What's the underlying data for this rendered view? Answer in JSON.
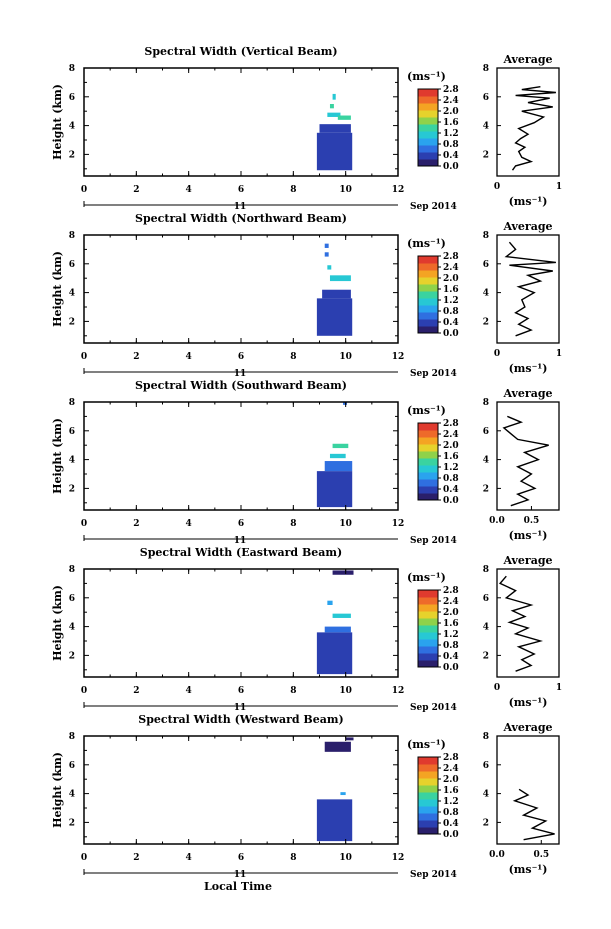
{
  "chart_data": [
    {
      "type": "heatmap",
      "title": "Spectral Width (Vertical Beam)",
      "ylabel": "Height (km)",
      "xlim": [
        0,
        12
      ],
      "ylim": [
        0.5,
        8
      ],
      "xticks": [
        "0",
        "2",
        "4",
        "6",
        "8",
        "10",
        "12"
      ],
      "yticks": [
        "2",
        "4",
        "6",
        "8"
      ],
      "date_day": "11",
      "date_label": "Sep 2014",
      "colorbar": {
        "unit": "(ms⁻¹)",
        "ticks": [
          "0.0",
          "0.4",
          "0.8",
          "1.2",
          "1.6",
          "2.0",
          "2.4",
          "2.8"
        ]
      },
      "cells": [
        {
          "t0": 8.9,
          "t1": 10.25,
          "h0": 0.9,
          "h1": 3.5,
          "c": 0.5
        },
        {
          "t0": 9.0,
          "t1": 10.2,
          "h0": 3.5,
          "h1": 4.1,
          "c": 0.45
        },
        {
          "t0": 9.3,
          "t1": 9.8,
          "h0": 4.6,
          "h1": 4.9,
          "c": 1.2
        },
        {
          "t0": 9.7,
          "t1": 10.2,
          "h0": 4.4,
          "h1": 4.7,
          "c": 1.5
        },
        {
          "t0": 9.4,
          "t1": 9.55,
          "h0": 5.2,
          "h1": 5.5,
          "c": 1.3
        },
        {
          "t0": 9.5,
          "t1": 9.62,
          "h0": 5.8,
          "h1": 6.2,
          "c": 1.1
        }
      ],
      "average": {
        "title": "Average",
        "xlabel": "(ms⁻¹)",
        "xlim": [
          0,
          1
        ],
        "xticks": [
          "0",
          "1"
        ],
        "ylim": [
          0.5,
          8
        ],
        "yticks": [
          "2",
          "4",
          "6",
          "8"
        ],
        "profile": [
          [
            0.25,
            0.9
          ],
          [
            0.3,
            1.2
          ],
          [
            0.55,
            1.5
          ],
          [
            0.4,
            1.8
          ],
          [
            0.35,
            2.2
          ],
          [
            0.45,
            2.5
          ],
          [
            0.3,
            2.8
          ],
          [
            0.38,
            3.1
          ],
          [
            0.5,
            3.4
          ],
          [
            0.35,
            3.8
          ],
          [
            0.6,
            4.2
          ],
          [
            0.75,
            4.6
          ],
          [
            0.4,
            5.0
          ],
          [
            0.9,
            5.3
          ],
          [
            0.5,
            5.6
          ],
          [
            0.85,
            5.9
          ],
          [
            0.3,
            6.1
          ],
          [
            0.95,
            6.3
          ],
          [
            0.4,
            6.5
          ],
          [
            0.7,
            6.7
          ]
        ]
      }
    },
    {
      "type": "heatmap",
      "title": "Spectral Width (Northward Beam)",
      "ylabel": "Height (km)",
      "xlim": [
        0,
        12
      ],
      "ylim": [
        0.5,
        8
      ],
      "xticks": [
        "0",
        "2",
        "4",
        "6",
        "8",
        "10",
        "12"
      ],
      "yticks": [
        "2",
        "4",
        "6",
        "8"
      ],
      "date_day": "11",
      "date_label": "Sep 2014",
      "colorbar": {
        "unit": "(ms⁻¹)",
        "ticks": [
          "0.0",
          "0.4",
          "0.8",
          "1.2",
          "1.6",
          "2.0",
          "2.4",
          "2.8"
        ]
      },
      "cells": [
        {
          "t0": 8.9,
          "t1": 10.25,
          "h0": 1.0,
          "h1": 3.6,
          "c": 0.5
        },
        {
          "t0": 9.1,
          "t1": 10.2,
          "h0": 3.6,
          "h1": 4.2,
          "c": 0.5
        },
        {
          "t0": 9.4,
          "t1": 10.2,
          "h0": 4.8,
          "h1": 5.2,
          "c": 1.1
        },
        {
          "t0": 9.3,
          "t1": 9.45,
          "h0": 5.6,
          "h1": 5.9,
          "c": 1.2
        },
        {
          "t0": 9.2,
          "t1": 9.35,
          "h0": 6.5,
          "h1": 6.8,
          "c": 0.6
        },
        {
          "t0": 9.2,
          "t1": 9.35,
          "h0": 7.1,
          "h1": 7.4,
          "c": 0.6
        }
      ],
      "average": {
        "title": "Average",
        "xlabel": "(ms⁻¹)",
        "xlim": [
          0,
          1
        ],
        "xticks": [
          "0",
          "1"
        ],
        "ylim": [
          0.5,
          8
        ],
        "yticks": [
          "2",
          "4",
          "6",
          "8"
        ],
        "profile": [
          [
            0.3,
            1.0
          ],
          [
            0.55,
            1.4
          ],
          [
            0.35,
            1.8
          ],
          [
            0.5,
            2.2
          ],
          [
            0.3,
            2.6
          ],
          [
            0.45,
            3.0
          ],
          [
            0.4,
            3.5
          ],
          [
            0.6,
            4.0
          ],
          [
            0.35,
            4.4
          ],
          [
            0.7,
            4.8
          ],
          [
            0.5,
            5.2
          ],
          [
            0.9,
            5.5
          ],
          [
            0.2,
            5.9
          ],
          [
            0.95,
            6.1
          ],
          [
            0.15,
            6.5
          ],
          [
            0.3,
            7.0
          ],
          [
            0.2,
            7.5
          ]
        ]
      }
    },
    {
      "type": "heatmap",
      "title": "Spectral Width (Southward Beam)",
      "ylabel": "Height (km)",
      "xlim": [
        0,
        12
      ],
      "ylim": [
        0.5,
        8
      ],
      "xticks": [
        "0",
        "2",
        "4",
        "6",
        "8",
        "10",
        "12"
      ],
      "yticks": [
        "2",
        "4",
        "6",
        "8"
      ],
      "date_day": "11",
      "date_label": "Sep 2014",
      "colorbar": {
        "unit": "(ms⁻¹)",
        "ticks": [
          "0.0",
          "0.4",
          "0.8",
          "1.2",
          "1.6",
          "2.0",
          "2.4",
          "2.8"
        ]
      },
      "cells": [
        {
          "t0": 8.9,
          "t1": 10.25,
          "h0": 0.7,
          "h1": 3.2,
          "c": 0.5
        },
        {
          "t0": 9.2,
          "t1": 10.25,
          "h0": 3.2,
          "h1": 3.9,
          "c": 0.6
        },
        {
          "t0": 9.4,
          "t1": 10.0,
          "h0": 4.1,
          "h1": 4.4,
          "c": 1.2
        },
        {
          "t0": 9.5,
          "t1": 10.1,
          "h0": 4.8,
          "h1": 5.1,
          "c": 1.3
        },
        {
          "t0": 9.9,
          "t1": 10.05,
          "h0": 7.8,
          "h1": 8.0,
          "c": 0.7
        }
      ],
      "average": {
        "title": "Average",
        "xlabel": "(ms⁻¹)",
        "xlim": [
          0,
          0.9
        ],
        "xticks": [
          "0.0",
          "0.5"
        ],
        "ylim": [
          0.5,
          8
        ],
        "yticks": [
          "2",
          "4",
          "6",
          "8"
        ],
        "profile": [
          [
            0.2,
            0.8
          ],
          [
            0.45,
            1.2
          ],
          [
            0.3,
            1.6
          ],
          [
            0.55,
            2.0
          ],
          [
            0.35,
            2.5
          ],
          [
            0.5,
            3.0
          ],
          [
            0.3,
            3.5
          ],
          [
            0.6,
            4.0
          ],
          [
            0.4,
            4.5
          ],
          [
            0.75,
            5.0
          ],
          [
            0.3,
            5.4
          ],
          [
            0.2,
            5.8
          ],
          [
            0.1,
            6.2
          ],
          [
            0.35,
            6.6
          ],
          [
            0.15,
            7.0
          ]
        ]
      }
    },
    {
      "type": "heatmap",
      "title": "Spectral Width (Eastward Beam)",
      "ylabel": "Height (km)",
      "xlim": [
        0,
        12
      ],
      "ylim": [
        0.5,
        8
      ],
      "xticks": [
        "0",
        "2",
        "4",
        "6",
        "8",
        "10",
        "12"
      ],
      "yticks": [
        "2",
        "4",
        "6",
        "8"
      ],
      "date_day": "11",
      "date_label": "Sep 2014",
      "colorbar": {
        "unit": "(ms⁻¹)",
        "ticks": [
          "0.0",
          "0.4",
          "0.8",
          "1.2",
          "1.6",
          "2.0",
          "2.4",
          "2.8"
        ]
      },
      "cells": [
        {
          "t0": 8.9,
          "t1": 10.25,
          "h0": 0.7,
          "h1": 3.6,
          "c": 0.5
        },
        {
          "t0": 9.2,
          "t1": 10.2,
          "h0": 3.6,
          "h1": 4.0,
          "c": 0.6
        },
        {
          "t0": 9.5,
          "t1": 10.2,
          "h0": 4.6,
          "h1": 4.9,
          "c": 1.2
        },
        {
          "t0": 9.3,
          "t1": 9.5,
          "h0": 5.5,
          "h1": 5.8,
          "c": 1.0
        },
        {
          "t0": 9.5,
          "t1": 10.3,
          "h0": 7.6,
          "h1": 7.9,
          "c": 0.1
        }
      ],
      "average": {
        "title": "Average",
        "xlabel": "(ms⁻¹)",
        "xlim": [
          0,
          1
        ],
        "xticks": [
          "0",
          "1"
        ],
        "ylim": [
          0.5,
          8
        ],
        "yticks": [
          "2",
          "4",
          "6",
          "8"
        ],
        "profile": [
          [
            0.3,
            0.9
          ],
          [
            0.55,
            1.3
          ],
          [
            0.4,
            1.7
          ],
          [
            0.6,
            2.1
          ],
          [
            0.35,
            2.6
          ],
          [
            0.7,
            3.0
          ],
          [
            0.3,
            3.5
          ],
          [
            0.5,
            3.9
          ],
          [
            0.2,
            4.3
          ],
          [
            0.45,
            4.7
          ],
          [
            0.25,
            5.1
          ],
          [
            0.55,
            5.5
          ],
          [
            0.15,
            6.0
          ],
          [
            0.3,
            6.5
          ],
          [
            0.05,
            7.0
          ],
          [
            0.15,
            7.5
          ]
        ]
      }
    },
    {
      "type": "heatmap",
      "title": "Spectral Width (Westward Beam)",
      "ylabel": "Height (km)",
      "xlabel": "Local Time",
      "xlim": [
        0,
        12
      ],
      "ylim": [
        0.5,
        8
      ],
      "xticks": [
        "0",
        "2",
        "4",
        "6",
        "8",
        "10",
        "12"
      ],
      "yticks": [
        "2",
        "4",
        "6",
        "8"
      ],
      "date_day": "11",
      "date_label": "Sep 2014",
      "colorbar": {
        "unit": "(ms⁻¹)",
        "ticks": [
          "0.0",
          "0.4",
          "0.8",
          "1.2",
          "1.6",
          "2.0",
          "2.4",
          "2.8"
        ]
      },
      "cells": [
        {
          "t0": 8.9,
          "t1": 10.25,
          "h0": 0.7,
          "h1": 3.6,
          "c": 0.5
        },
        {
          "t0": 9.8,
          "t1": 10.0,
          "h0": 3.9,
          "h1": 4.1,
          "c": 0.9
        },
        {
          "t0": 9.2,
          "t1": 10.2,
          "h0": 6.9,
          "h1": 7.6,
          "c": 0.1
        },
        {
          "t0": 10.0,
          "t1": 10.3,
          "h0": 7.7,
          "h1": 7.9,
          "c": 0.1
        }
      ],
      "average": {
        "title": "Average",
        "xlabel": "(ms⁻¹)",
        "xlim": [
          0,
          0.7
        ],
        "xticks": [
          "0.0",
          "0.5"
        ],
        "ylim": [
          0.5,
          8
        ],
        "yticks": [
          "2",
          "4",
          "6",
          "8"
        ],
        "profile": [
          [
            0.3,
            0.8
          ],
          [
            0.65,
            1.2
          ],
          [
            0.4,
            1.6
          ],
          [
            0.55,
            2.1
          ],
          [
            0.3,
            2.5
          ],
          [
            0.45,
            3.0
          ],
          [
            0.2,
            3.5
          ],
          [
            0.35,
            3.9
          ],
          [
            0.25,
            4.3
          ]
        ]
      }
    }
  ]
}
